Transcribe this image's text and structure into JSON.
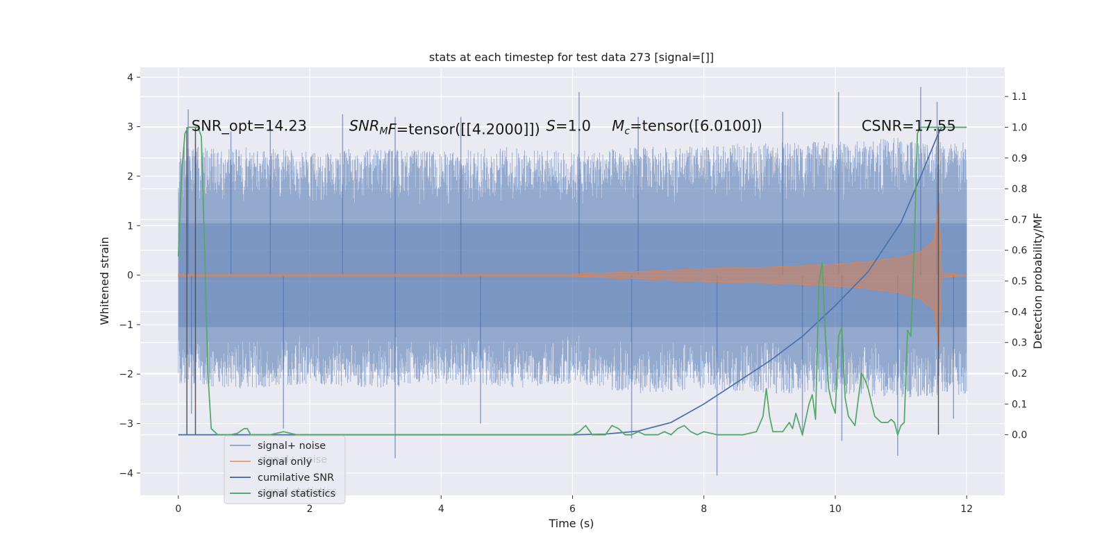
{
  "chart_data": {
    "type": "line",
    "title": "stats at each timestep for test data 273 [signal=[]]",
    "xlabel": "Time (s)",
    "ylabel": "Whitened strain",
    "y2label": "Detection probability/MF",
    "xlim": [
      -0.58,
      12.58
    ],
    "ylim": [
      -4.45,
      4.2
    ],
    "y2lim": [
      -0.197,
      1.195
    ],
    "grid": true,
    "x_ticks": [
      0,
      2,
      4,
      6,
      8,
      10,
      12
    ],
    "x_tick_labels": [
      "0",
      "2",
      "4",
      "6",
      "8",
      "10",
      "12"
    ],
    "y_ticks": [
      4,
      3,
      2,
      1,
      0,
      -1,
      -2,
      -3,
      -4
    ],
    "y_tick_labels": [
      "4",
      "3",
      "2",
      "1",
      "0",
      "−1",
      "−2",
      "−3",
      "−4"
    ],
    "y2_ticks": [
      1.1,
      1.0,
      0.9,
      0.8,
      0.7,
      0.6,
      0.5,
      0.4,
      0.3,
      0.2,
      0.1,
      0.0
    ],
    "y2_tick_labels": [
      "1.1",
      "1.0",
      "0.9",
      "0.8",
      "0.7",
      "0.6",
      "0.5",
      "0.4",
      "0.3",
      "0.2",
      "0.1",
      "0.0"
    ],
    "noise_envelope": {
      "x": [
        0,
        1,
        2,
        3,
        4,
        5,
        6,
        7,
        8,
        9,
        10,
        11,
        12
      ],
      "upper": [
        2.6,
        2.6,
        2.5,
        2.6,
        2.5,
        2.6,
        2.5,
        2.6,
        2.6,
        2.7,
        2.7,
        2.8,
        2.7
      ],
      "lower": [
        -2.2,
        -2.3,
        -2.2,
        -2.3,
        -2.2,
        -2.3,
        -2.2,
        -2.4,
        -2.3,
        -2.4,
        -2.4,
        -2.5,
        -2.4
      ],
      "spikes_up": [
        [
          0.15,
          3.35
        ],
        [
          0.8,
          2.9
        ],
        [
          1.4,
          3.1
        ],
        [
          2.5,
          3.25
        ],
        [
          3.3,
          3.2
        ],
        [
          4.3,
          3.2
        ],
        [
          6.1,
          3.7
        ],
        [
          7.0,
          3.2
        ],
        [
          9.2,
          3.3
        ],
        [
          10.05,
          3.7
        ],
        [
          11.3,
          3.8
        ],
        [
          11.55,
          3.5
        ]
      ],
      "spikes_down": [
        [
          0.2,
          -2.8
        ],
        [
          1.6,
          -3.1
        ],
        [
          3.3,
          -3.7
        ],
        [
          4.6,
          -3.0
        ],
        [
          6.9,
          -3.3
        ],
        [
          8.2,
          -4.05
        ],
        [
          9.5,
          -3.25
        ],
        [
          10.1,
          -3.35
        ],
        [
          10.95,
          -3.65
        ],
        [
          11.8,
          -2.9
        ]
      ]
    },
    "series": [
      {
        "name": "signal+ noise",
        "color": "#4c72b0",
        "kind": "noise-band"
      },
      {
        "name": "signal only",
        "color": "#dd8452",
        "kind": "chirp",
        "amplitude_x": [
          0,
          6,
          7,
          8,
          9,
          9.5,
          10,
          10.5,
          11,
          11.3,
          11.5,
          11.58,
          11.62,
          12
        ],
        "amplitude_y": [
          0.02,
          0.02,
          0.07,
          0.13,
          0.16,
          0.19,
          0.22,
          0.27,
          0.36,
          0.48,
          0.7,
          1.45,
          0.05,
          0.0
        ]
      },
      {
        "name": "cumilative SNR",
        "color": "#4c72b0",
        "kind": "line",
        "axis": "y2",
        "x": [
          0,
          6.0,
          6.5,
          7.0,
          7.5,
          8.0,
          8.5,
          9.0,
          9.5,
          10.0,
          10.5,
          11.0,
          11.3,
          11.55,
          11.62,
          12
        ],
        "y": [
          0.0,
          0.0,
          0.002,
          0.012,
          0.04,
          0.1,
          0.17,
          0.24,
          0.32,
          0.42,
          0.53,
          0.69,
          0.84,
          0.97,
          1.0,
          1.0
        ]
      },
      {
        "name": "signal statistics",
        "color": "#55a868",
        "kind": "line",
        "axis": "y2",
        "x": [
          0,
          0.05,
          0.1,
          0.15,
          0.2,
          0.25,
          0.3,
          0.35,
          0.4,
          0.45,
          0.5,
          0.6,
          0.7,
          0.8,
          0.9,
          1.0,
          1.05,
          1.1,
          1.2,
          1.4,
          1.6,
          1.8,
          2.0,
          2.5,
          3.0,
          3.5,
          4.0,
          4.5,
          5.0,
          5.5,
          6.0,
          6.1,
          6.2,
          6.3,
          6.4,
          6.5,
          6.6,
          6.7,
          6.8,
          6.9,
          7.0,
          7.1,
          7.2,
          7.3,
          7.4,
          7.5,
          7.6,
          7.7,
          7.8,
          7.9,
          8.0,
          8.2,
          8.4,
          8.6,
          8.8,
          8.9,
          8.95,
          9.0,
          9.05,
          9.1,
          9.2,
          9.3,
          9.35,
          9.4,
          9.5,
          9.6,
          9.65,
          9.7,
          9.75,
          9.8,
          9.85,
          9.9,
          9.95,
          10.0,
          10.05,
          10.1,
          10.15,
          10.2,
          10.3,
          10.4,
          10.45,
          10.5,
          10.6,
          10.7,
          10.8,
          10.85,
          10.9,
          10.95,
          11.0,
          11.05,
          11.1,
          11.15,
          11.2,
          11.25,
          11.3,
          11.35,
          11.4,
          11.5,
          11.6,
          11.65,
          12.0
        ],
        "y": [
          0.58,
          0.85,
          0.98,
          1.0,
          1.0,
          1.0,
          1.0,
          0.97,
          0.6,
          0.2,
          0.02,
          0.0,
          0.0,
          0.0,
          0.005,
          0.02,
          0.02,
          0.0,
          0.0,
          0.0,
          0.01,
          0.0,
          0.0,
          0.0,
          0.0,
          0.0,
          0.0,
          0.0,
          0.0,
          0.0,
          0.0,
          0.01,
          0.03,
          0.0,
          0.0,
          0.0,
          0.03,
          0.02,
          0.0,
          0.0,
          0.01,
          0.0,
          0.0,
          0.0,
          0.01,
          0.0,
          0.02,
          0.03,
          0.01,
          0.0,
          0.01,
          0.0,
          0.0,
          0.0,
          0.01,
          0.06,
          0.15,
          0.06,
          0.01,
          0.01,
          0.01,
          0.04,
          0.02,
          0.07,
          0.0,
          0.1,
          0.13,
          0.05,
          0.49,
          0.56,
          0.32,
          0.15,
          0.1,
          0.07,
          0.32,
          0.35,
          0.12,
          0.06,
          0.03,
          0.2,
          0.18,
          0.15,
          0.06,
          0.04,
          0.04,
          0.05,
          0.04,
          0.0,
          0.03,
          0.04,
          0.34,
          0.32,
          0.6,
          0.98,
          1.0,
          1.0,
          1.0,
          1.0,
          1.0,
          1.0,
          1.0
        ]
      }
    ],
    "vlines": [
      0.13,
      0.26,
      11.57
    ],
    "annotations": [
      {
        "text": "SNR_opt=14.23",
        "x": 0.2,
        "y": 3.0,
        "math": false
      },
      {
        "prefix": "SNR",
        "sub": "M",
        "suffix": "F=tensor([[4.2000]])",
        "x": 2.6,
        "y": 3.0,
        "math": true
      },
      {
        "prefix": "S",
        "sub": "",
        "suffix": "=1.0",
        "x": 5.6,
        "y": 3.0,
        "math": true
      },
      {
        "prefix": "M",
        "sub": "c",
        "suffix": "=tensor([6.0100])",
        "x": 6.6,
        "y": 3.0,
        "math": true
      },
      {
        "text": "CSNR=17.55",
        "x": 10.4,
        "y": 3.0,
        "math": false
      }
    ],
    "legend": {
      "placement": "lower-left",
      "entries": [
        "signal+ noise",
        "signal only",
        "cumilative SNR",
        "signal statistics"
      ],
      "ghost_entries": [
        "signal+ noise",
        "signal statistics"
      ]
    }
  }
}
